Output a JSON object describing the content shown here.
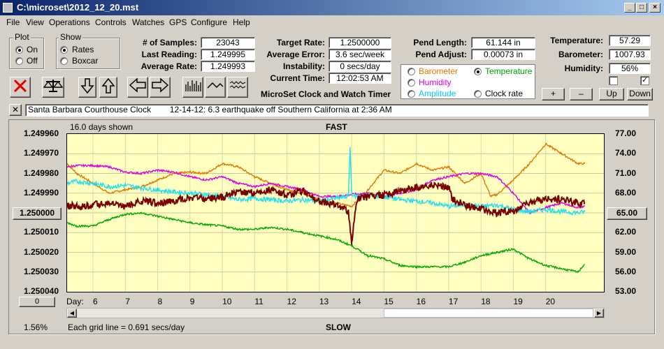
{
  "window": {
    "title": "C:\\microset\\2012_12_20.mst"
  },
  "menu": [
    "File",
    "View",
    "Operations",
    "Controls",
    "Watches",
    "GPS",
    "Configure",
    "Help"
  ],
  "plot_group": {
    "title": "Plot",
    "options": [
      "On",
      "Off"
    ],
    "selected": "On"
  },
  "show_group": {
    "title": "Show",
    "options": [
      "Rates",
      "Boxcar"
    ],
    "selected": "Rates"
  },
  "stats": {
    "samples_label": "# of Samples:",
    "samples": "23043",
    "last_reading_label": "Last Reading:",
    "last_reading": "1.249995",
    "average_rate_label": "Average Rate:",
    "average_rate": "1.249993",
    "target_rate_label": "Target Rate:",
    "target_rate": "1.2500000",
    "average_error_label": "Average Error:",
    "average_error": "3.6 sec/week",
    "instability_label": "Instability:",
    "instability": "0 secs/day",
    "current_time_label": "Current Time:",
    "current_time": "12:02:53 AM",
    "pend_length_label": "Pend Length:",
    "pend_length": "61.144 in",
    "pend_adjust_label": "Pend Adjust:",
    "pend_adjust": "0.00073 in",
    "temperature_label": "Temperature:",
    "temperature": "57.29",
    "barometer_label": "Barometer:",
    "barometer": "1007.93",
    "humidity_label": "Humidity:",
    "humidity": "56%"
  },
  "app_title": "MicroSet Clock and Watch Timer",
  "overlay": {
    "options": [
      {
        "label": "Barometer",
        "color": "#e07800"
      },
      {
        "label": "Temperature",
        "color": "#00a000"
      },
      {
        "label": "Humidity",
        "color": "#e000e0"
      },
      {
        "label": "Amplitude",
        "color": "#00c0ff"
      },
      {
        "label": "Clock rate",
        "color": "#000000"
      }
    ],
    "selected": "Temperature"
  },
  "scale_buttons": [
    "+",
    "–",
    "Up",
    "Down"
  ],
  "note": {
    "text": "Santa Barbara Courthouse Clock        12-14-12: 6.3 earthquake off Southern California at 2:36 AM"
  },
  "chart_data": {
    "type": "line",
    "title": "FAST",
    "bottom_label": "SLOW",
    "days_shown": "16.0 days shown",
    "grid_note": "Each grid line = 0.691 secs/day",
    "percent": "1.56%",
    "x_label": "Day:",
    "x_ticks": [
      "6",
      "7",
      "8",
      "9",
      "10",
      "11",
      "12",
      "13",
      "14",
      "15",
      "16",
      "17",
      "18",
      "19",
      "20"
    ],
    "y_left_ticks": [
      "1.249960",
      "1.249970",
      "1.249980",
      "1.249990",
      "1.250000",
      "1.250010",
      "1.250020",
      "1.250030",
      "1.250040"
    ],
    "y_left_button": "1.250000",
    "y_left_range": [
      1.24996,
      1.25004
    ],
    "y_right_ticks": [
      "77.00",
      "74.00",
      "71.00",
      "68.00",
      "65.00",
      "62.00",
      "59.00",
      "56.00",
      "53.00"
    ],
    "y_right_button": "65.00",
    "y_right_range": [
      53,
      77
    ],
    "x_range": [
      5.2,
      21.8
    ],
    "lower_button": "0",
    "series": [
      {
        "name": "Clock rate",
        "color": "#7a0000",
        "x": [
          5.2,
          5.6,
          6.0,
          6.5,
          7.0,
          7.5,
          8.0,
          8.5,
          9.0,
          9.5,
          10.0,
          10.5,
          11.0,
          11.5,
          12.0,
          12.5,
          13.0,
          13.5,
          13.9,
          14.0,
          14.1,
          14.2,
          14.5,
          15.0,
          15.5,
          16.0,
          16.5,
          17.0,
          17.1,
          17.5,
          18.0,
          18.5,
          19.0,
          19.5,
          20.0,
          20.5,
          21.0,
          21.2
        ],
        "y": [
          1.249996,
          1.249997,
          1.249996,
          1.249995,
          1.249997,
          1.249994,
          1.249995,
          1.249994,
          1.249992,
          1.249993,
          1.249992,
          1.249989,
          1.24999,
          1.249988,
          1.249991,
          1.249989,
          1.249994,
          1.249996,
          1.249999,
          1.250015,
          1.25,
          1.249993,
          1.249992,
          1.249991,
          1.249989,
          1.249987,
          1.249986,
          1.249987,
          1.249993,
          1.249996,
          1.249998,
          1.25,
          1.249999,
          1.249995,
          1.249993,
          1.249993,
          1.249995,
          1.249995
        ]
      },
      {
        "name": "Barometer",
        "color": "#e07800",
        "x": [
          5.2,
          5.5,
          6.0,
          6.5,
          7.0,
          7.5,
          8.0,
          8.5,
          9.0,
          9.5,
          10.0,
          10.5,
          11.0,
          11.5,
          12.0,
          12.5,
          13.0,
          13.5,
          14.0,
          14.5,
          15.0,
          15.5,
          16.0,
          16.5,
          17.0,
          17.5,
          18.0,
          18.3,
          18.5,
          19.0,
          19.5,
          20.0,
          20.5,
          21.0,
          21.2
        ],
        "y": [
          72.5,
          71.0,
          69.5,
          68.0,
          68.5,
          69.0,
          70.0,
          71.0,
          71.2,
          71.0,
          72.5,
          72.0,
          70.5,
          69.5,
          68.5,
          68.0,
          67.0,
          66.5,
          66.0,
          68.5,
          71.5,
          71.0,
          72.5,
          71.5,
          72.0,
          69.5,
          71.0,
          67.5,
          67.8,
          70.0,
          72.5,
          75.5,
          74.0,
          72.5,
          72.5
        ]
      },
      {
        "name": "Humidity",
        "color": "#e000e0",
        "x": [
          5.2,
          5.5,
          6.0,
          6.5,
          7.0,
          7.5,
          8.0,
          8.5,
          9.0,
          9.5,
          10.0,
          10.5,
          11.0,
          11.5,
          12.0,
          12.5,
          13.0,
          13.5,
          14.0,
          14.5,
          15.0,
          15.5,
          16.0,
          16.5,
          17.0,
          17.5,
          18.0,
          18.5,
          19.0,
          19.5,
          20.0,
          20.5,
          21.0,
          21.2
        ],
        "y": [
          72.0,
          72.2,
          72.2,
          72.0,
          71.2,
          71.0,
          71.5,
          71.2,
          70.5,
          70.0,
          70.5,
          69.5,
          69.0,
          69.5,
          69.0,
          68.5,
          67.5,
          67.5,
          67.8,
          68.0,
          67.5,
          68.0,
          68.5,
          70.0,
          70.5,
          71.0,
          71.0,
          70.5,
          68.0,
          65.0,
          65.8,
          66.5,
          65.8,
          66.0
        ]
      },
      {
        "name": "Amplitude",
        "color": "#20e0f0",
        "x": [
          5.2,
          5.5,
          6.0,
          6.5,
          7.0,
          7.5,
          8.0,
          8.5,
          9.0,
          9.5,
          10.0,
          10.5,
          11.0,
          11.5,
          12.0,
          12.5,
          13.0,
          13.5,
          13.9,
          13.95,
          14.0,
          14.1,
          14.5,
          15.0,
          15.5,
          16.0,
          16.5,
          17.0,
          17.5,
          18.0,
          18.5,
          19.0,
          19.5,
          20.0,
          20.5,
          21.0,
          21.2
        ],
        "y": [
          69.5,
          69.8,
          69.5,
          69.0,
          69.2,
          68.8,
          68.5,
          68.2,
          68.0,
          67.8,
          67.5,
          67.0,
          67.2,
          67.0,
          66.8,
          67.0,
          66.8,
          67.2,
          67.5,
          75.0,
          68.0,
          67.5,
          67.8,
          67.5,
          67.0,
          66.8,
          66.5,
          66.0,
          66.2,
          66.0,
          66.2,
          65.5,
          65.2,
          65.5,
          65.2,
          65.0,
          65.2
        ]
      },
      {
        "name": "Temperature",
        "color": "#00a800",
        "x": [
          5.2,
          5.5,
          6.0,
          6.5,
          7.0,
          7.5,
          8.0,
          8.5,
          9.0,
          9.5,
          10.0,
          10.5,
          11.0,
          11.5,
          12.0,
          12.5,
          13.0,
          13.5,
          14.0,
          14.5,
          15.0,
          15.5,
          16.0,
          16.5,
          17.0,
          17.5,
          18.0,
          18.5,
          19.0,
          19.5,
          20.0,
          20.5,
          21.0,
          21.2
        ],
        "y": [
          63.5,
          63.0,
          63.0,
          64.0,
          64.8,
          65.0,
          64.5,
          64.0,
          63.5,
          63.2,
          63.0,
          62.5,
          62.5,
          62.8,
          62.5,
          62.0,
          61.5,
          61.0,
          60.0,
          58.5,
          58.0,
          57.0,
          56.8,
          56.8,
          56.8,
          57.5,
          58.5,
          59.0,
          59.5,
          58.0,
          57.0,
          56.5,
          56.0,
          57.2
        ]
      }
    ]
  }
}
